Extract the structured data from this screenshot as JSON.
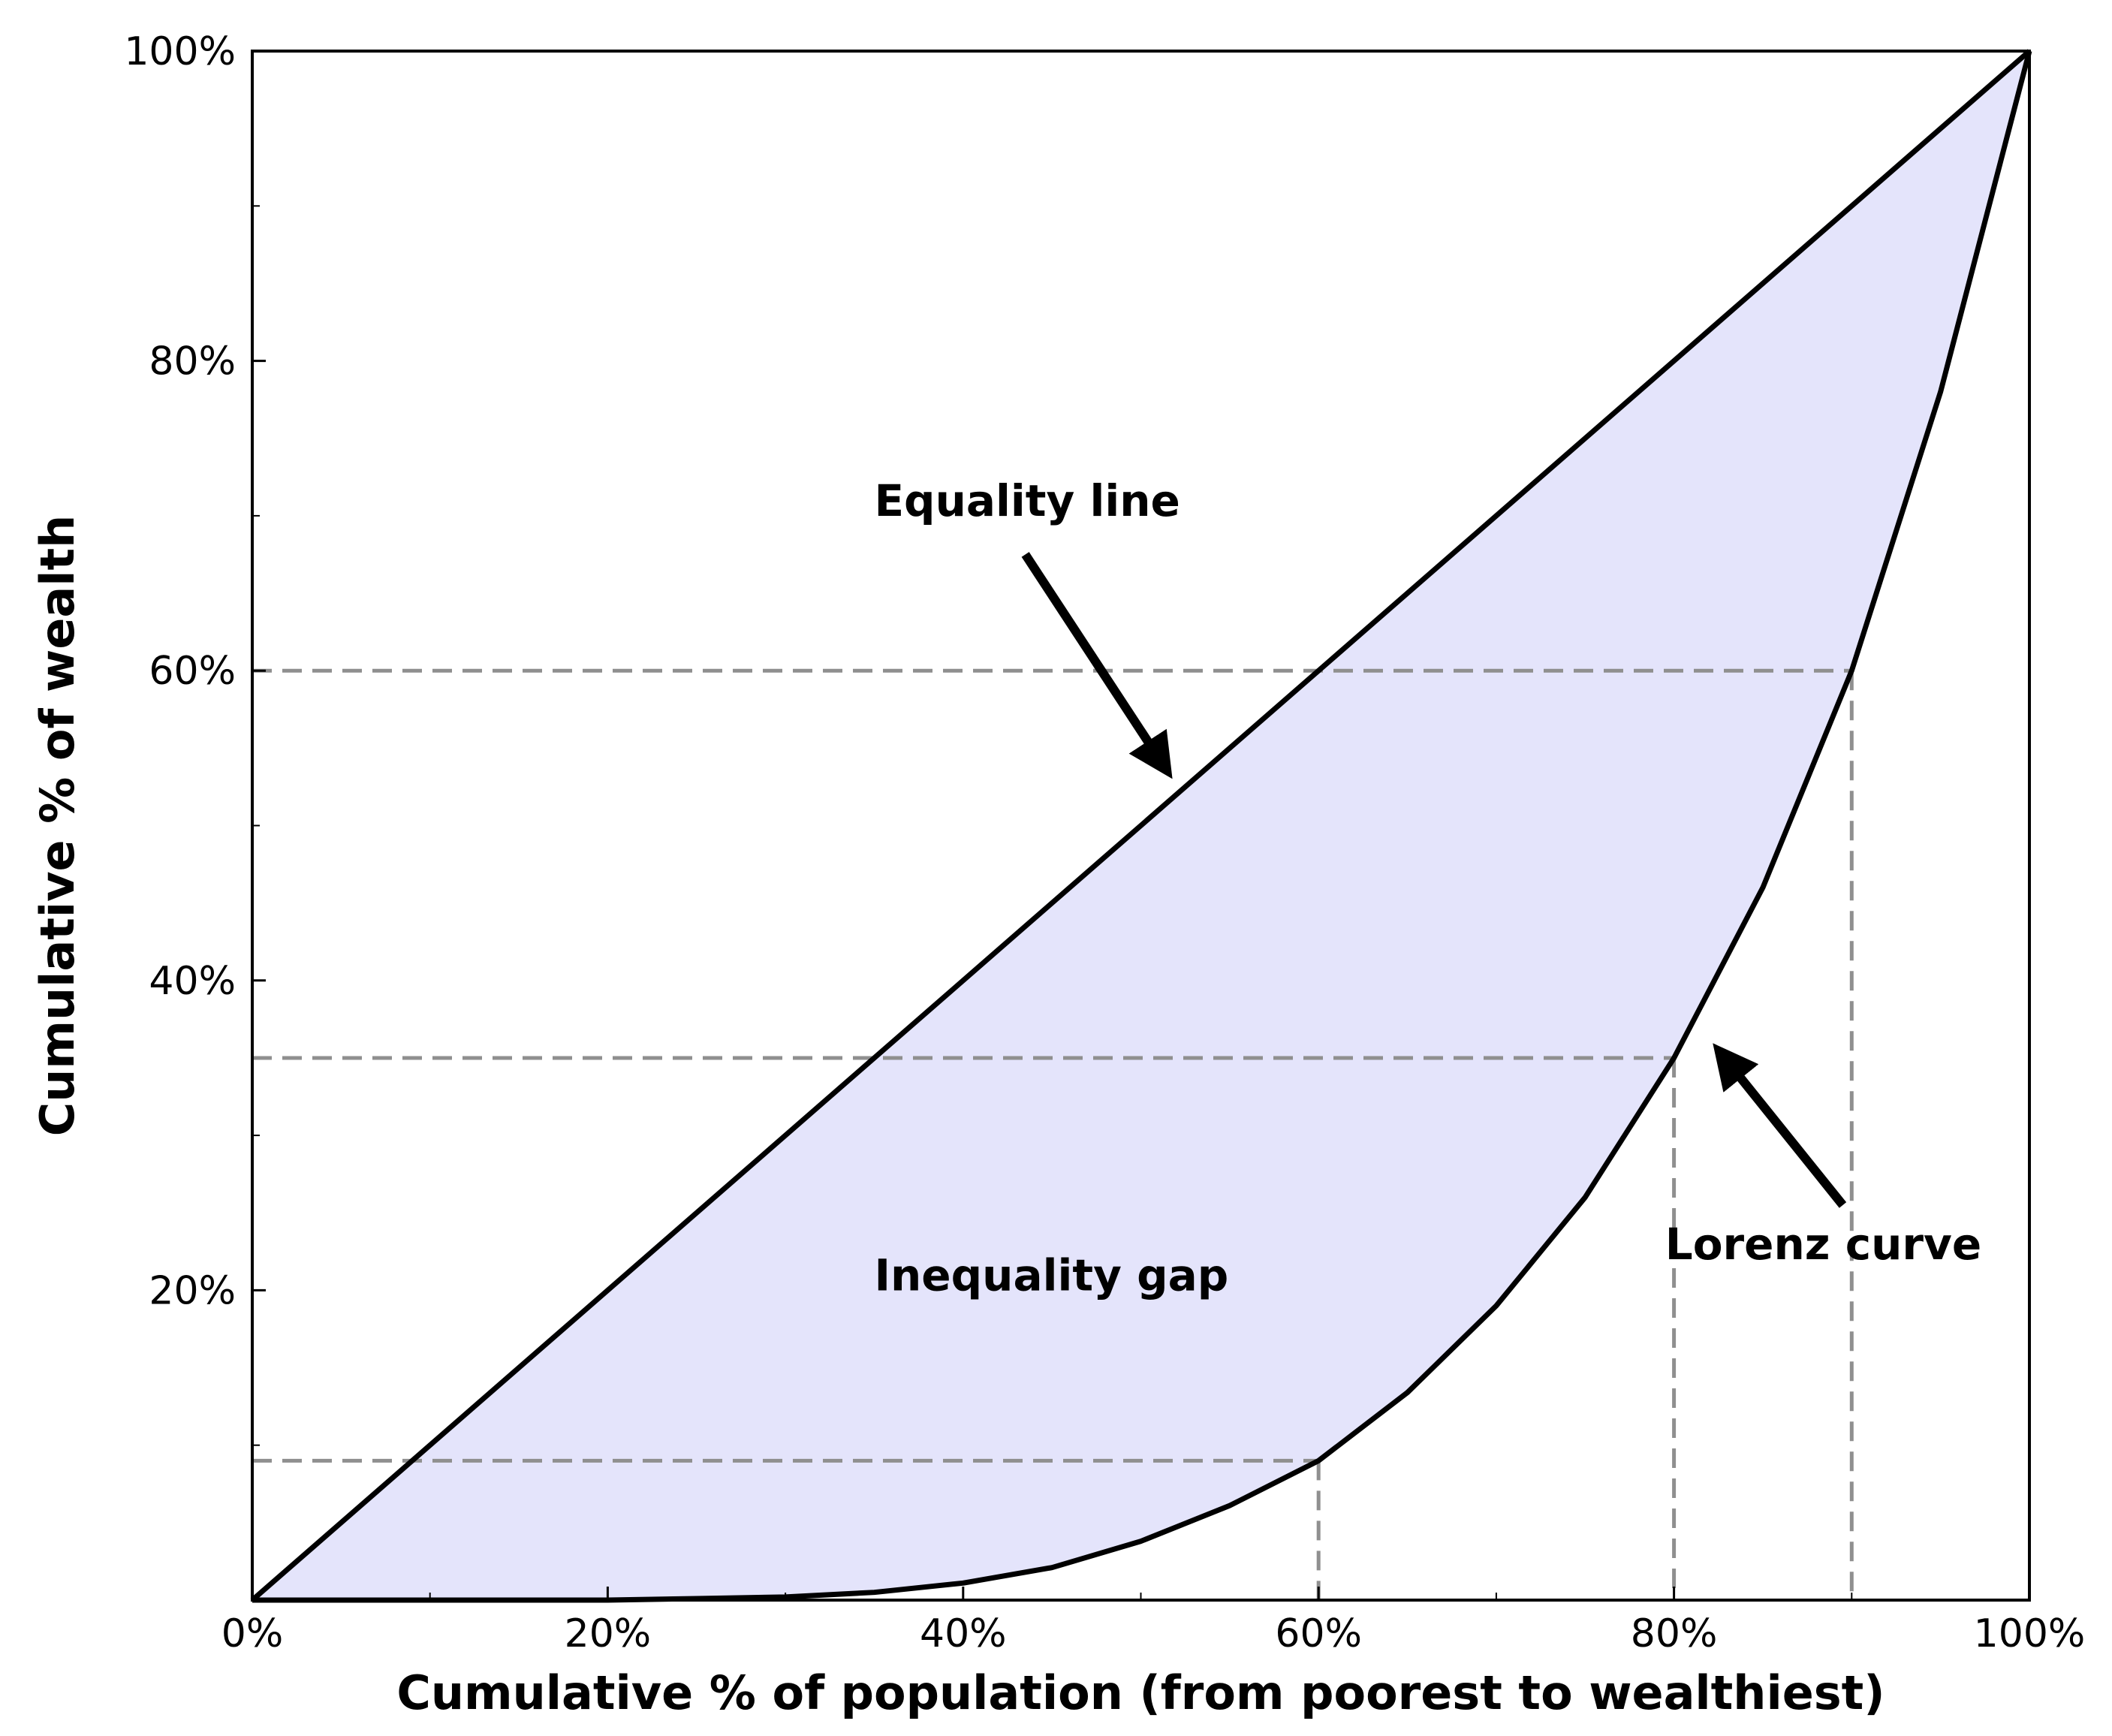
{
  "chart_data": {
    "type": "line",
    "title": "",
    "xlabel": "Cumulative % of population (from poorest to wealthiest)",
    "ylabel": "Cumulative % of wealth",
    "xlim": [
      0,
      100
    ],
    "ylim": [
      0,
      100
    ],
    "x_ticks": [
      0,
      20,
      40,
      60,
      80,
      100
    ],
    "x_tick_labels": [
      "0%",
      "20%",
      "40%",
      "60%",
      "80%",
      "100%"
    ],
    "y_ticks": [
      20,
      40,
      60,
      80,
      100
    ],
    "y_tick_labels": [
      "20%",
      "40%",
      "60%",
      "80%",
      "100%"
    ],
    "minor_ticks": [
      10,
      30,
      50,
      70,
      90
    ],
    "grid": false,
    "series": [
      {
        "name": "Equality line",
        "color": "#000000",
        "x": [
          0,
          100
        ],
        "y": [
          0,
          100
        ]
      },
      {
        "name": "Lorenz curve",
        "color": "#000000",
        "x": [
          0,
          5,
          10,
          15,
          20,
          25,
          30,
          35,
          40,
          45,
          50,
          55,
          60,
          65,
          70,
          75,
          80,
          85,
          90,
          95,
          100
        ],
        "y": [
          0,
          0.0,
          0.0,
          0.0,
          0.0,
          0.1,
          0.2,
          0.5,
          1.1,
          2.1,
          3.8,
          6.1,
          9.0,
          13.4,
          19.0,
          26.0,
          35.0,
          46.0,
          60.0,
          78.0,
          100.0
        ]
      }
    ],
    "fill_between": {
      "label": "Inequality gap",
      "color": "#e4e4fb"
    },
    "reference_lines": [
      {
        "x": 60,
        "y": 9,
        "color": "#8f8f8f"
      },
      {
        "x": 80,
        "y": 35,
        "color": "#8f8f8f"
      },
      {
        "x": 90,
        "y": 60,
        "color": "#8f8f8f"
      }
    ],
    "annotations": [
      {
        "text": "Equality line",
        "text_at": [
          35,
          70
        ],
        "arrow_from": [
          43.5,
          67.5
        ],
        "arrow_to": [
          51.5,
          53.5
        ]
      },
      {
        "text": "Lorenz curve",
        "text_at": [
          79.5,
          22
        ],
        "arrow_from": [
          89.5,
          25.5
        ],
        "arrow_to": [
          82.5,
          35.5
        ]
      },
      {
        "text": "Inequality gap",
        "text_at": [
          35,
          20
        ]
      }
    ]
  }
}
